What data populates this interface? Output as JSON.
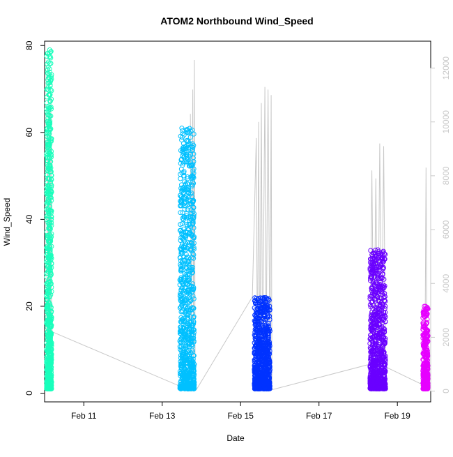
{
  "chart_data": {
    "type": "scatter",
    "title": "ATOM2 Northbound Wind_Speed",
    "xlabel": "Date",
    "ylabel": "Wind_Speed",
    "x_unit": "days in February",
    "xlim": [
      10.0,
      19.85
    ],
    "ylim": [
      -2,
      81
    ],
    "y2lim": [
      -400,
      13000
    ],
    "x_ticks": [
      11,
      13,
      15,
      17,
      19
    ],
    "x_tick_labels": [
      "Feb 11",
      "Feb 13",
      "Feb 15",
      "Feb 17",
      "Feb 19"
    ],
    "y_ticks": [
      0,
      20,
      40,
      60,
      80
    ],
    "y2_ticks": [
      0,
      2000,
      4000,
      6000,
      8000,
      10000,
      12000
    ],
    "secondary_axis_color": "#c8c8c8",
    "grid": false,
    "series": [
      {
        "color": "#19ffbc",
        "x_range": [
          10.05,
          10.18
        ],
        "y_range": [
          1,
          79
        ],
        "point_count": 800,
        "peaks": [
          {
            "x": 10.13,
            "y": 79
          },
          {
            "x": 10.16,
            "y": 72
          },
          {
            "x": 10.1,
            "y": 60
          }
        ]
      },
      {
        "color": "#00c0ff",
        "x_range": [
          13.45,
          13.82
        ],
        "y_range": [
          1,
          61
        ],
        "point_count": 900,
        "peaks": [
          {
            "x": 13.5,
            "y": 61
          },
          {
            "x": 13.55,
            "y": 50
          }
        ]
      },
      {
        "color": "#0033ff",
        "x_range": [
          15.35,
          15.75
        ],
        "y_range": [
          1,
          22
        ],
        "point_count": 900,
        "peaks": [
          {
            "x": 15.6,
            "y": 22
          }
        ]
      },
      {
        "color": "#6a00ff",
        "x_range": [
          18.3,
          18.7
        ],
        "y_range": [
          1,
          33
        ],
        "point_count": 900,
        "peaks": [
          {
            "x": 18.5,
            "y": 33
          }
        ]
      },
      {
        "color": "#e600ff",
        "x_range": [
          19.65,
          19.78
        ],
        "y_range": [
          1,
          20
        ],
        "point_count": 400,
        "peaks": [
          {
            "x": 19.72,
            "y": 20
          }
        ]
      }
    ],
    "overlay_line": {
      "color": "#c8c8c8",
      "axis": "right",
      "points": [
        [
          10.0,
          1200
        ],
        [
          10.05,
          1400
        ],
        [
          10.08,
          9800
        ],
        [
          10.1,
          1300
        ],
        [
          10.12,
          10600
        ],
        [
          10.14,
          1500
        ],
        [
          10.16,
          11000
        ],
        [
          10.18,
          2400
        ],
        [
          10.2,
          2200
        ],
        [
          13.75,
          0
        ],
        [
          13.72,
          10300
        ],
        [
          13.74,
          700
        ],
        [
          13.78,
          11200
        ],
        [
          13.8,
          800
        ],
        [
          13.82,
          12300
        ],
        [
          13.84,
          200
        ],
        [
          13.87,
          50
        ],
        [
          15.3,
          3500
        ],
        [
          15.4,
          9400
        ],
        [
          15.43,
          600
        ],
        [
          15.46,
          10000
        ],
        [
          15.49,
          800
        ],
        [
          15.53,
          10700
        ],
        [
          15.56,
          1000
        ],
        [
          15.62,
          11300
        ],
        [
          15.65,
          900
        ],
        [
          15.7,
          11200
        ],
        [
          15.75,
          700
        ],
        [
          15.78,
          11000
        ],
        [
          15.8,
          50
        ],
        [
          18.3,
          1000
        ],
        [
          18.35,
          8200
        ],
        [
          18.4,
          900
        ],
        [
          18.45,
          7900
        ],
        [
          18.5,
          900
        ],
        [
          18.55,
          9200
        ],
        [
          18.6,
          1000
        ],
        [
          18.65,
          9100
        ],
        [
          18.7,
          900
        ],
        [
          19.7,
          200
        ],
        [
          19.73,
          8300
        ],
        [
          19.76,
          400
        ],
        [
          19.8,
          200
        ]
      ]
    }
  }
}
